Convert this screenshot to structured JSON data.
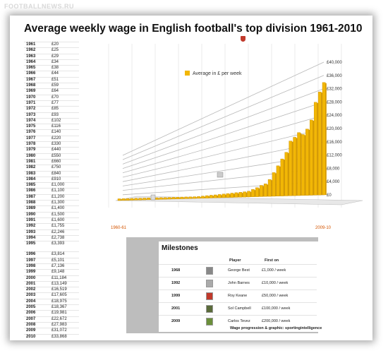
{
  "watermark": "FOOTBALLNEWS.RU",
  "title": "Average weekly wage in English football's top division 1961-2010",
  "table": [
    [
      "1961",
      "£20"
    ],
    [
      "1962",
      "£25"
    ],
    [
      "1963",
      "£29"
    ],
    [
      "1964",
      "£34"
    ],
    [
      "1965",
      "£38"
    ],
    [
      "1966",
      "£44"
    ],
    [
      "1967",
      "£51"
    ],
    [
      "1968",
      "£59"
    ],
    [
      "1969",
      "£64"
    ],
    [
      "1970",
      "£70"
    ],
    [
      "1971",
      "£77"
    ],
    [
      "1972",
      "£85"
    ],
    [
      "1973",
      "£93"
    ],
    [
      "1974",
      "£102"
    ],
    [
      "1975",
      "£116"
    ],
    [
      "1976",
      "£140"
    ],
    [
      "1977",
      "£220"
    ],
    [
      "1978",
      "£330"
    ],
    [
      "1979",
      "£440"
    ],
    [
      "1980",
      "£550"
    ],
    [
      "1981",
      "£660"
    ],
    [
      "1982",
      "£750"
    ],
    [
      "1983",
      "£840"
    ],
    [
      "1984",
      "£910"
    ],
    [
      "1985",
      "£1,000"
    ],
    [
      "1986",
      "£1,100"
    ],
    [
      "1987",
      "£1,200"
    ],
    [
      "1988",
      "£1,300"
    ],
    [
      "1989",
      "£1,400"
    ],
    [
      "1990",
      "£1,500"
    ],
    [
      "1991",
      "£1,600"
    ],
    [
      "1992",
      "£1,755"
    ],
    [
      "1993",
      "£2,246"
    ],
    [
      "1994",
      "£2,738"
    ],
    [
      "1995",
      "£3,393"
    ],
    [
      "1996",
      "£3,814"
    ],
    [
      "1997",
      "£5,101"
    ],
    [
      "1998",
      "£7,136"
    ],
    [
      "1999",
      "£9,148"
    ],
    [
      "2000",
      "£11,184"
    ],
    [
      "2001",
      "£13,149"
    ],
    [
      "2002",
      "£16,519"
    ],
    [
      "2003",
      "£17,605"
    ],
    [
      "2004",
      "£18,975"
    ],
    [
      "2005",
      "£18,367"
    ],
    [
      "2006",
      "£19,981"
    ],
    [
      "2007",
      "£22,672"
    ],
    [
      "2008",
      "£27,983"
    ],
    [
      "2009",
      "£31,072"
    ],
    [
      "2010",
      "£33,868"
    ]
  ],
  "chart_data": {
    "type": "bar",
    "title": "Average weekly wage in English football's top division 1961-2010",
    "legend": {
      "label": "Average in £ per week",
      "position": "top"
    },
    "series_color": "#f2b705",
    "categories": [
      "1961",
      "1962",
      "1963",
      "1964",
      "1965",
      "1966",
      "1967",
      "1968",
      "1969",
      "1970",
      "1971",
      "1972",
      "1973",
      "1974",
      "1975",
      "1976",
      "1977",
      "1978",
      "1979",
      "1980",
      "1981",
      "1982",
      "1983",
      "1984",
      "1985",
      "1986",
      "1987",
      "1988",
      "1989",
      "1990",
      "1991",
      "1992",
      "1993",
      "1994",
      "1995",
      "1996",
      "1997",
      "1998",
      "1999",
      "2000",
      "2001",
      "2002",
      "2003",
      "2004",
      "2005",
      "2006",
      "2007",
      "2008",
      "2009",
      "2010"
    ],
    "values": [
      20,
      25,
      29,
      34,
      38,
      44,
      51,
      59,
      64,
      70,
      77,
      85,
      93,
      102,
      116,
      140,
      220,
      330,
      440,
      550,
      660,
      750,
      840,
      910,
      1000,
      1100,
      1200,
      1300,
      1400,
      1500,
      1600,
      1755,
      2246,
      2738,
      3393,
      3814,
      5101,
      7136,
      9148,
      11184,
      13149,
      16519,
      17605,
      18975,
      18367,
      19981,
      22672,
      27983,
      31072,
      33868
    ],
    "yticks": [
      "£0",
      "£4,000",
      "£8,000",
      "£12,000",
      "£16,000",
      "£20,000",
      "£24,000",
      "£28,000",
      "£32,000",
      "£36,000",
      "£40,000"
    ],
    "ylim": [
      0,
      40000
    ],
    "x_start_label": "1960-61",
    "x_end_label": "2009-10",
    "grid": true
  },
  "milestones": {
    "title": "Milestones",
    "col_player": "Player",
    "col_first": "First on",
    "rows": [
      {
        "year": "1968",
        "player": "George Best",
        "first_on": "£1,000 / week"
      },
      {
        "year": "1992",
        "player": "John Barnes",
        "first_on": "£10,000 / week"
      },
      {
        "year": "1999",
        "player": "Roy Keane",
        "first_on": "£50,000 / week"
      },
      {
        "year": "2001",
        "player": "Sol Campbell",
        "first_on": "£100,000 / week"
      },
      {
        "year": "2009",
        "player": "Carlos Tevez",
        "first_on": "£200,000 / week"
      }
    ]
  },
  "credit": "Wage progression & graphic: sportingintelligence"
}
